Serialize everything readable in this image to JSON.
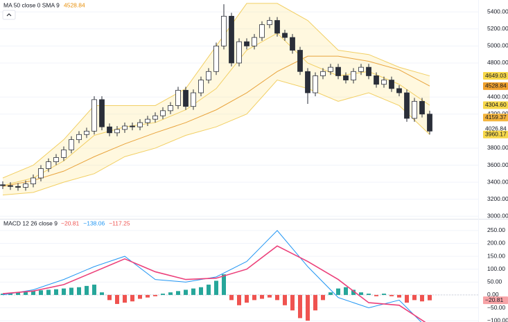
{
  "chart_data": [
    {
      "type": "candlestick",
      "legend_title": "MA 50 close 0 SMA 9",
      "legend_value": "4528.84",
      "legend_value_color": "#e8900c",
      "up_color": "#ffffff",
      "down_color": "#2a2e39",
      "outline_color": "#2a2e39",
      "open": [
        3370,
        3360,
        3350,
        3340,
        3380,
        3450,
        3560,
        3640,
        3690,
        3780,
        3900,
        3960,
        4000,
        4370,
        4050,
        3980,
        4020,
        4060,
        4050,
        4100,
        4140,
        4180,
        4240,
        4300,
        4480,
        4290,
        4450,
        4600,
        4700,
        5000,
        5350,
        4800,
        5050,
        5000,
        5100,
        5250,
        5300,
        5150,
        5100,
        4950,
        4700,
        4450,
        4650,
        4700,
        4750,
        4650,
        4600,
        4700,
        4750,
        4650,
        4550,
        4600,
        4500,
        4450,
        4150,
        4350,
        4200
      ],
      "high": [
        3410,
        3400,
        3390,
        3420,
        3490,
        3600,
        3680,
        3730,
        3820,
        3940,
        4000,
        4040,
        4410,
        4410,
        4090,
        4060,
        4100,
        4100,
        4140,
        4180,
        4220,
        4280,
        4340,
        4520,
        4520,
        4490,
        4640,
        4740,
        5040,
        5490,
        5390,
        5090,
        5090,
        5140,
        5290,
        5340,
        5340,
        5190,
        5140,
        4990,
        4740,
        4690,
        4740,
        4790,
        4790,
        4690,
        4740,
        4790,
        4790,
        4690,
        4640,
        4640,
        4540,
        4490,
        4390,
        4390,
        4240
      ],
      "low": [
        3320,
        3310,
        3300,
        3300,
        3340,
        3410,
        3520,
        3600,
        3650,
        3740,
        3860,
        3920,
        3960,
        4010,
        3940,
        3940,
        3980,
        4010,
        4010,
        4060,
        4100,
        4140,
        4200,
        4260,
        4250,
        4250,
        4410,
        4560,
        4660,
        4960,
        4760,
        4760,
        4960,
        4960,
        5060,
        5210,
        5110,
        5060,
        4910,
        4660,
        4320,
        4410,
        4610,
        4660,
        4610,
        4560,
        4560,
        4660,
        4610,
        4510,
        4510,
        4460,
        4410,
        4110,
        4110,
        4160,
        3960
      ],
      "close": [
        3360,
        3350,
        3340,
        3380,
        3450,
        3560,
        3640,
        3690,
        3780,
        3900,
        3960,
        4000,
        4370,
        4050,
        3980,
        4020,
        4060,
        4050,
        4100,
        4140,
        4180,
        4240,
        4300,
        4480,
        4290,
        4450,
        4600,
        4700,
        5000,
        5350,
        4800,
        5050,
        5000,
        5100,
        5250,
        5300,
        5150,
        5100,
        4950,
        4700,
        4450,
        4650,
        4700,
        4750,
        4650,
        4600,
        4700,
        4750,
        4650,
        4550,
        4600,
        4500,
        4450,
        4150,
        4350,
        4200,
        4000
      ],
      "band_x": [
        0,
        4,
        8,
        12,
        16,
        20,
        24,
        28,
        32,
        36,
        40,
        44,
        48,
        52,
        56
      ],
      "band_upper": [
        3450,
        3600,
        3900,
        4300,
        4300,
        4300,
        4500,
        5000,
        5500,
        5500,
        5300,
        4950,
        4900,
        4750,
        4649
      ],
      "band_lower": [
        3250,
        3280,
        3400,
        3500,
        3700,
        3800,
        3950,
        4050,
        4200,
        4600,
        4500,
        4350,
        4450,
        4300,
        3960
      ],
      "band_color": "#f2cf63",
      "band_fill": "rgba(255,230,140,0.28)",
      "lines": [
        {
          "color": "#e8a33c",
          "values": [
            3350,
            3420,
            3530,
            3700,
            3850,
            3980,
            4100,
            4250,
            4450,
            4700,
            4880,
            4880,
            4820,
            4720,
            4530
          ]
        },
        {
          "color": "#f2cf63",
          "values": [
            3360,
            3450,
            3650,
            3950,
            4050,
            4100,
            4250,
            4500,
            4950,
            5150,
            4800,
            4650,
            4700,
            4550,
            4304
          ]
        }
      ],
      "ylim": [
        2970,
        5540
      ],
      "yticks": [
        {
          "value": 3000,
          "label": "3000.00"
        },
        {
          "value": 3200,
          "label": "3200.00"
        },
        {
          "value": 3400,
          "label": "3400.00"
        },
        {
          "value": 3600,
          "label": "3600.00"
        },
        {
          "value": 3800,
          "label": "3800.00"
        },
        {
          "value": 4200,
          "label": "4200.00"
        },
        {
          "value": 4400,
          "label": "4400.00"
        },
        {
          "value": 4800,
          "label": "4800.00"
        },
        {
          "value": 5000,
          "label": "5000.00"
        },
        {
          "value": 5200,
          "label": "5200.00"
        },
        {
          "value": 5400,
          "label": "5400.00"
        }
      ],
      "price_badges": [
        {
          "value": 4649.03,
          "label": "4649.03",
          "color": "#f7d84a"
        },
        {
          "value": 4528.84,
          "label": "4528.84",
          "color": "#f0a12e"
        },
        {
          "value": 4304.6,
          "label": "4304.60",
          "color": "#f7d84a"
        },
        {
          "value": 4159.37,
          "label": "4159.37",
          "color": "#f5b53d"
        },
        {
          "value": 4026.84,
          "label": "4026.84"
        },
        {
          "value": 3960.17,
          "label": "3960.17",
          "color": "#f7d84a"
        }
      ]
    },
    {
      "type": "macd",
      "legend_title": "MACD 12 26 close 9",
      "legend_values": [
        {
          "value": -20.81,
          "label": "−20.81",
          "color": "#ef5350"
        },
        {
          "value": -138.06,
          "label": "−138.06",
          "color": "#2196f3"
        },
        {
          "value": -117.25,
          "label": "−117.25",
          "color": "#ef5350"
        }
      ],
      "histogram": [
        5,
        8,
        10,
        12,
        15,
        18,
        20,
        22,
        25,
        28,
        30,
        35,
        40,
        10,
        -20,
        -35,
        -30,
        -25,
        -15,
        -10,
        -5,
        5,
        10,
        15,
        20,
        25,
        30,
        40,
        55,
        80,
        -20,
        -40,
        -30,
        -20,
        -15,
        -10,
        -20,
        -40,
        -60,
        -90,
        -100,
        -60,
        -20,
        10,
        25,
        30,
        20,
        10,
        5,
        -5,
        5,
        -5,
        -10,
        -30,
        -20,
        -25,
        -20.81
      ],
      "pos_color": "#26a69a",
      "neg_color": "#ef5350",
      "line_x": [
        0,
        4,
        8,
        12,
        16,
        20,
        24,
        28,
        32,
        36,
        40,
        44,
        48,
        52,
        56
      ],
      "series": [
        {
          "color": "#2196f3",
          "values": [
            0,
            20,
            60,
            110,
            150,
            60,
            50,
            70,
            130,
            250,
            110,
            -10,
            -50,
            -20,
            -138.06
          ]
        },
        {
          "color": "#ec407a",
          "values": [
            5,
            15,
            40,
            90,
            140,
            90,
            60,
            65,
            100,
            190,
            130,
            60,
            -30,
            -40,
            -117.25
          ]
        }
      ],
      "ylim": [
        -105,
        290
      ],
      "yticks": [
        {
          "value": 250,
          "label": "250.00"
        },
        {
          "value": 200,
          "label": "200.00"
        },
        {
          "value": 150,
          "label": "150.00"
        },
        {
          "value": 100,
          "label": "100.00"
        },
        {
          "value": 50,
          "label": "50.00"
        },
        {
          "value": 0,
          "label": "0.00"
        },
        {
          "value": -50,
          "label": "−50.00"
        },
        {
          "value": -100,
          "label": "−100.00"
        }
      ],
      "badge": {
        "value": -20.81,
        "label": "−20.81",
        "color": "#f7a3a6"
      }
    }
  ]
}
